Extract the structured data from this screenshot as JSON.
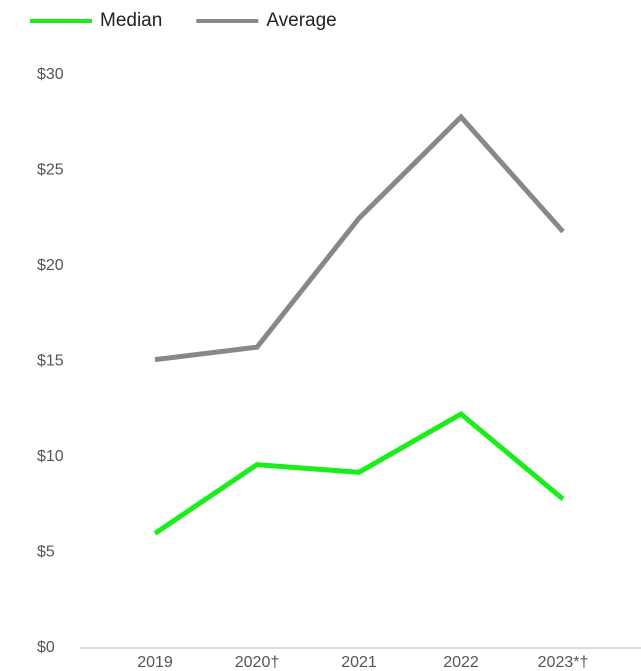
{
  "chart_data": {
    "type": "line",
    "categories": [
      "2019",
      "2020†",
      "2021",
      "2022",
      "2023*†"
    ],
    "series": [
      {
        "name": "Median",
        "color": "#1aee1a",
        "values": [
          6.0,
          9.6,
          9.2,
          12.25,
          7.8
        ]
      },
      {
        "name": "Average",
        "color": "#86898c",
        "values": [
          15.1,
          15.75,
          22.5,
          27.8,
          21.8
        ]
      }
    ],
    "ylim": [
      0,
      30
    ],
    "yticks": [
      {
        "value": 0,
        "label": "$0"
      },
      {
        "value": 5,
        "label": "$5"
      },
      {
        "value": 10,
        "label": "$10"
      },
      {
        "value": 15,
        "label": "$15"
      },
      {
        "value": 20,
        "label": "$20"
      },
      {
        "value": 25,
        "label": "$25"
      },
      {
        "value": 30,
        "label": "$30"
      }
    ],
    "grid": false,
    "legend": "top"
  }
}
